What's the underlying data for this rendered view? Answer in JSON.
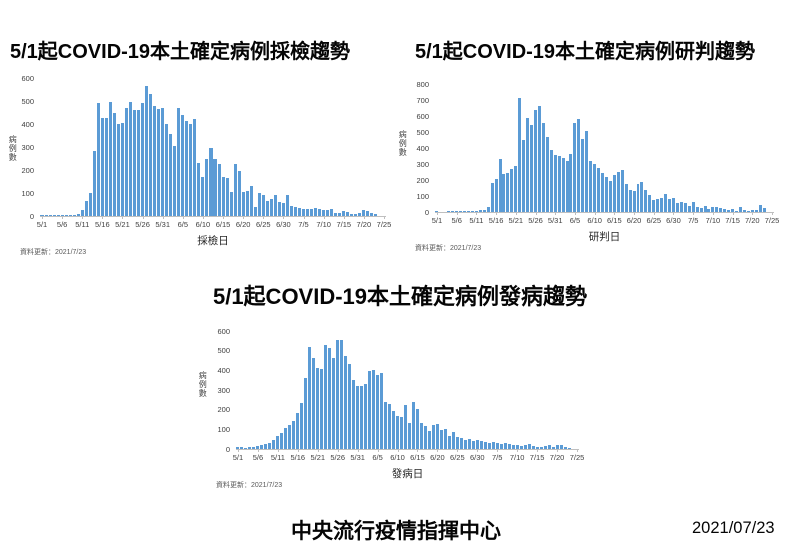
{
  "footer": {
    "org": "中央流行疫情指揮中心",
    "date": "2021/07/23"
  },
  "colors": {
    "bar": "#5B9BD5",
    "axis": "#BFBFBF",
    "tick_text": "#404040",
    "title_text": "#000000"
  },
  "x_axis_slots": 86,
  "xtick_labels": [
    "5/1",
    "5/6",
    "5/11",
    "5/16",
    "5/21",
    "5/26",
    "5/31",
    "6/5",
    "6/10",
    "6/15",
    "6/20",
    "6/25",
    "6/30",
    "7/5",
    "7/10",
    "7/15",
    "7/20",
    "7/25"
  ],
  "xtick_day_index": [
    0,
    5,
    10,
    15,
    20,
    25,
    30,
    35,
    40,
    45,
    50,
    55,
    60,
    65,
    70,
    75,
    80,
    85
  ],
  "x_dates": [
    "5/1",
    "5/2",
    "5/3",
    "5/4",
    "5/5",
    "5/6",
    "5/7",
    "5/8",
    "5/9",
    "5/10",
    "5/11",
    "5/12",
    "5/13",
    "5/14",
    "5/15",
    "5/16",
    "5/17",
    "5/18",
    "5/19",
    "5/20",
    "5/21",
    "5/22",
    "5/23",
    "5/24",
    "5/25",
    "5/26",
    "5/27",
    "5/28",
    "5/29",
    "5/30",
    "5/31",
    "6/1",
    "6/2",
    "6/3",
    "6/4",
    "6/5",
    "6/6",
    "6/7",
    "6/8",
    "6/9",
    "6/10",
    "6/11",
    "6/12",
    "6/13",
    "6/14",
    "6/15",
    "6/16",
    "6/17",
    "6/18",
    "6/19",
    "6/20",
    "6/21",
    "6/22",
    "6/23",
    "6/24",
    "6/25",
    "6/26",
    "6/27",
    "6/28",
    "6/29",
    "6/30",
    "7/1",
    "7/2",
    "7/3",
    "7/4",
    "7/5",
    "7/6",
    "7/7",
    "7/8",
    "7/9",
    "7/10",
    "7/11",
    "7/12",
    "7/13",
    "7/14",
    "7/15",
    "7/16",
    "7/17",
    "7/18",
    "7/19",
    "7/20",
    "7/21",
    "7/22",
    "7/23"
  ],
  "chart_data": [
    {
      "type": "bar",
      "title": "5/1起COVID-19本土確定病例採檢趨勢",
      "ylabel": "病例數",
      "xlabel": "採檢日",
      "footnote": "資料更新：2021/7/23",
      "ylim": [
        0,
        600
      ],
      "ytick_step": 100,
      "x_ref": "x_dates",
      "values": [
        2,
        1,
        1,
        1,
        2,
        2,
        3,
        3,
        5,
        8,
        25,
        64,
        101,
        284,
        490,
        425,
        428,
        495,
        448,
        398,
        405,
        470,
        496,
        462,
        461,
        492,
        565,
        531,
        480,
        467,
        470,
        398,
        357,
        305,
        470,
        441,
        413,
        398,
        420,
        230,
        170,
        250,
        295,
        250,
        225,
        170,
        165,
        105,
        228,
        196,
        105,
        110,
        130,
        40,
        98,
        90,
        64,
        74,
        90,
        63,
        55,
        93,
        45,
        40,
        35,
        32,
        30,
        32,
        35,
        30,
        28,
        24,
        30,
        15,
        12,
        22,
        18,
        8,
        10,
        15,
        25,
        20,
        12,
        8
      ]
    },
    {
      "type": "bar",
      "title": "5/1起COVID-19本土確定病例研判趨勢",
      "ylabel": "病例數",
      "xlabel": "研判日",
      "footnote": "資料更新：2021/7/23",
      "ylim": [
        0,
        800
      ],
      "ytick_step": 100,
      "x_ref": "x_dates",
      "values": [
        1,
        0,
        0,
        1,
        1,
        1,
        1,
        1,
        2,
        2,
        7,
        10,
        13,
        29,
        180,
        206,
        333,
        240,
        245,
        267,
        289,
        715,
        447,
        590,
        542,
        635,
        660,
        555,
        470,
        390,
        355,
        350,
        340,
        320,
        360,
        555,
        580,
        455,
        505,
        320,
        300,
        275,
        245,
        220,
        195,
        230,
        250,
        265,
        175,
        140,
        130,
        175,
        185,
        135,
        105,
        75,
        80,
        90,
        110,
        80,
        85,
        55,
        60,
        55,
        40,
        60,
        30,
        25,
        35,
        20,
        30,
        30,
        25,
        20,
        10,
        20,
        8,
        30,
        12,
        8,
        10,
        15,
        45,
        25
      ]
    },
    {
      "type": "bar",
      "title": "5/1起COVID-19本土確定病例發病趨勢",
      "ylabel": "病例數",
      "xlabel": "發病日",
      "footnote": "資料更新：2021/7/23",
      "ylim": [
        0,
        600
      ],
      "ytick_step": 100,
      "x_ref": "x_dates",
      "values": [
        8,
        8,
        5,
        8,
        12,
        15,
        18,
        25,
        32,
        45,
        65,
        80,
        105,
        120,
        142,
        185,
        235,
        362,
        520,
        463,
        410,
        405,
        530,
        512,
        462,
        553,
        555,
        475,
        430,
        350,
        320,
        320,
        330,
        395,
        400,
        375,
        385,
        240,
        230,
        195,
        170,
        165,
        225,
        130,
        240,
        205,
        130,
        115,
        90,
        120,
        125,
        95,
        100,
        65,
        85,
        60,
        55,
        45,
        50,
        40,
        45,
        40,
        35,
        30,
        35,
        30,
        25,
        30,
        25,
        20,
        20,
        15,
        20,
        25,
        15,
        10,
        10,
        15,
        20,
        8,
        18,
        18,
        8,
        3
      ]
    }
  ]
}
